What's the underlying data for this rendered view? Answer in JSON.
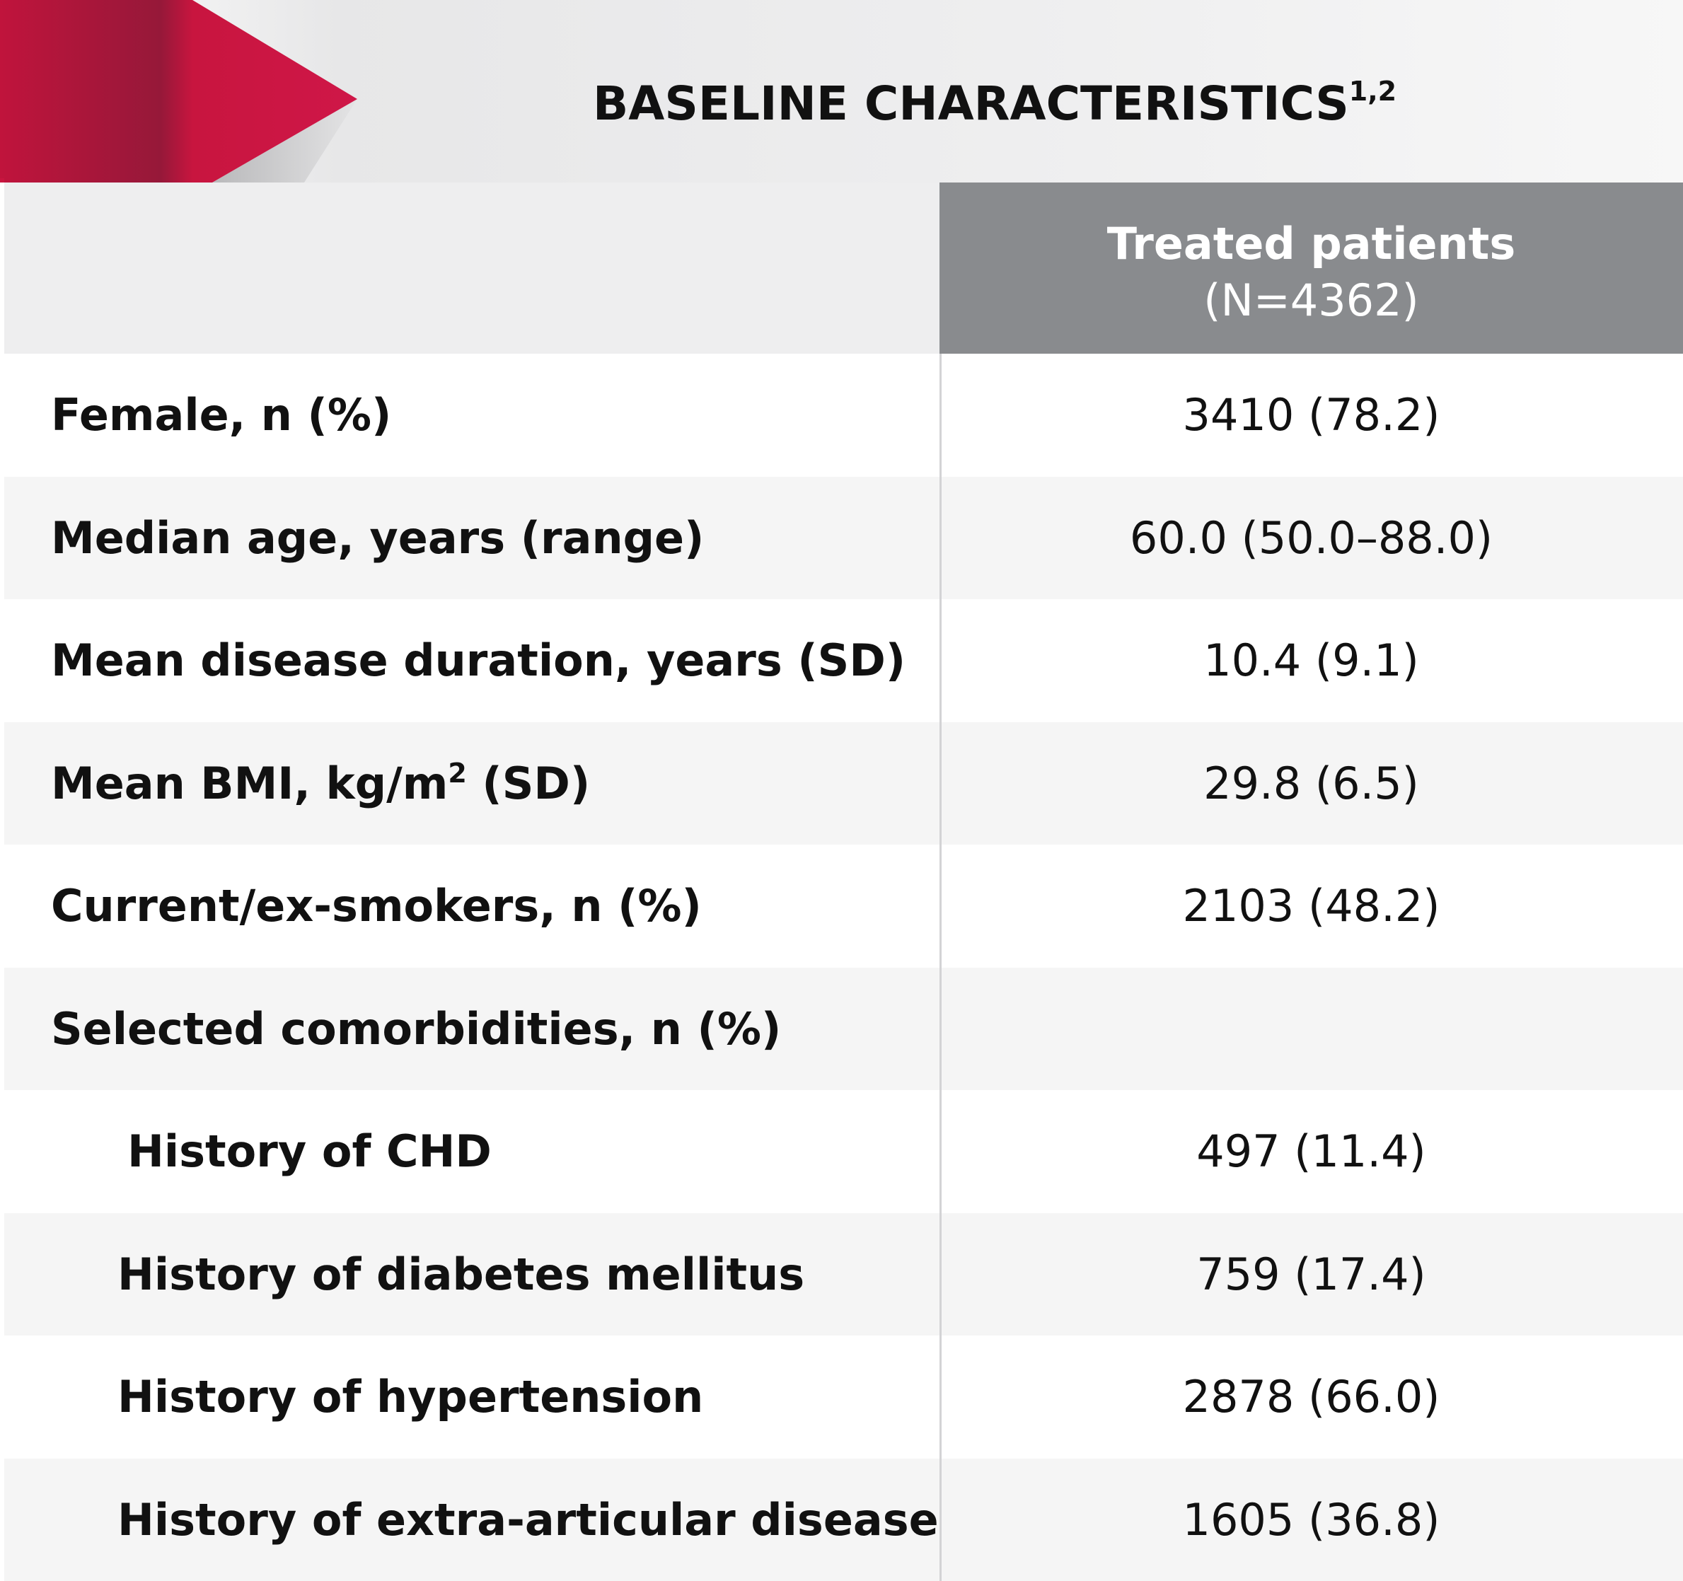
{
  "banner": {
    "title": "BASELINE CHARACTERISTICS",
    "title_sup": "1,2",
    "accent_color": "#c8153f"
  },
  "header": {
    "column_title": "Treated patients",
    "column_subtitle": "(N=4362)"
  },
  "rows": [
    {
      "label": "Female, n (%)",
      "value": "3410 (78.2)"
    },
    {
      "label": "Median age, years (range)",
      "value": "60.0 (50.0–88.0)"
    },
    {
      "label": "Mean disease duration, years (SD)",
      "value": "10.4 (9.1)"
    },
    {
      "label_pre": "Mean BMI, kg/m",
      "label_sup": "2",
      "label_post": " (SD)",
      "value": "29.8 (6.5)"
    },
    {
      "label": "Current/ex-smokers, n (%)",
      "value": "2103 (48.2)"
    },
    {
      "label": "Selected comorbidities, n (%)",
      "value": ""
    },
    {
      "label": "History of CHD",
      "value": "497 (11.4)"
    },
    {
      "label": "History of diabetes mellitus",
      "value": "759 (17.4)"
    },
    {
      "label": "History of hypertension",
      "value": "2878 (66.0)"
    },
    {
      "label": "History of extra-articular disease",
      "value": "1605 (36.8)"
    }
  ]
}
